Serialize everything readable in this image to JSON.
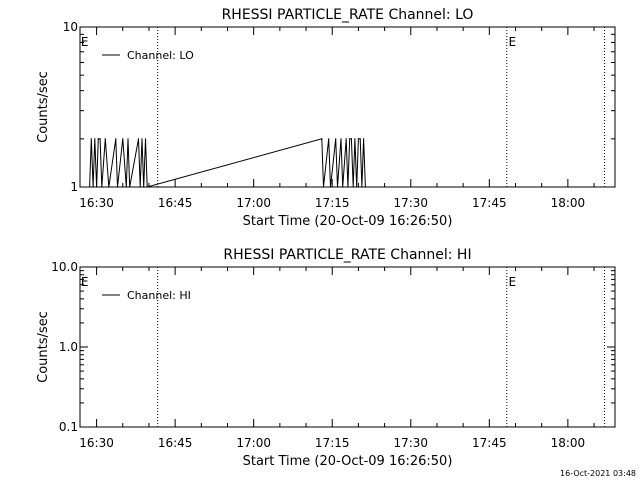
{
  "footer_timestamp": "16-Oct-2021 03:48",
  "chart_data": [
    {
      "type": "line",
      "title": "RHESSI PARTICLE_RATE Channel: LO",
      "xlabel": "Start Time (20-Oct-09 16:26:50)",
      "ylabel": "Counts/sec",
      "yscale": "log",
      "xlim": [
        "16:26:50",
        "18:09:00"
      ],
      "ylim": [
        1,
        10
      ],
      "ytick_labels": [
        "1",
        "10"
      ],
      "xtick_labels": [
        "16:30",
        "16:45",
        "17:00",
        "17:15",
        "17:30",
        "17:45",
        "18:00"
      ],
      "grid": false,
      "legend": "top-left",
      "series": [
        {
          "name": "Channel: LO",
          "points": [
            [
              "16:28:40",
              1
            ],
            [
              "16:29:00",
              2
            ],
            [
              "16:29:20",
              1
            ],
            [
              "16:29:40",
              2
            ],
            [
              "16:30:00",
              1
            ],
            [
              "16:30:20",
              2
            ],
            [
              "16:30:40",
              2
            ],
            [
              "16:31:00",
              1
            ],
            [
              "16:31:40",
              2
            ],
            [
              "16:32:20",
              1
            ],
            [
              "16:33:40",
              2
            ],
            [
              "16:34:00",
              1
            ],
            [
              "16:35:00",
              2
            ],
            [
              "16:35:40",
              1
            ],
            [
              "16:36:00",
              2
            ],
            [
              "16:36:20",
              1
            ],
            [
              "16:38:00",
              2
            ],
            [
              "16:38:20",
              1
            ],
            [
              "16:38:40",
              2
            ],
            [
              "16:39:00",
              1
            ],
            [
              "16:39:20",
              2
            ],
            [
              "16:39:40",
              1
            ],
            [
              "17:13:00",
              2
            ],
            [
              "17:13:20",
              1
            ],
            [
              "17:14:20",
              2
            ],
            [
              "17:14:40",
              1
            ],
            [
              "17:15:40",
              2
            ],
            [
              "17:16:00",
              1
            ],
            [
              "17:16:40",
              2
            ],
            [
              "17:17:00",
              1
            ],
            [
              "17:17:40",
              2
            ],
            [
              "17:18:00",
              1
            ],
            [
              "17:18:20",
              2
            ],
            [
              "17:18:40",
              2
            ],
            [
              "17:19:00",
              1
            ],
            [
              "17:19:20",
              2
            ],
            [
              "17:19:40",
              1
            ],
            [
              "17:20:00",
              2
            ],
            [
              "17:20:20",
              2
            ],
            [
              "17:20:40",
              1
            ],
            [
              "17:21:00",
              2
            ],
            [
              "17:21:20",
              1
            ]
          ]
        }
      ],
      "vlines": [
        "16:41:40",
        "17:48:20",
        "18:07:00"
      ],
      "annotations": [
        {
          "text": "E",
          "x": "16:27:00"
        },
        {
          "text": "E",
          "x": "17:48:40"
        }
      ]
    },
    {
      "type": "line",
      "title": "RHESSI PARTICLE_RATE Channel: HI",
      "xlabel": "Start Time (20-Oct-09 16:26:50)",
      "ylabel": "Counts/sec",
      "yscale": "log",
      "xlim": [
        "16:26:50",
        "18:09:00"
      ],
      "ylim": [
        0.1,
        10
      ],
      "ytick_labels": [
        "0.1",
        "1.0",
        "10.0"
      ],
      "xtick_labels": [
        "16:30",
        "16:45",
        "17:00",
        "17:15",
        "17:30",
        "17:45",
        "18:00"
      ],
      "grid": false,
      "legend": "top-left",
      "series": [
        {
          "name": "Channel: HI",
          "points": []
        }
      ],
      "vlines": [
        "16:41:40",
        "17:48:20",
        "18:07:00"
      ],
      "annotations": [
        {
          "text": "E",
          "x": "16:27:00"
        },
        {
          "text": "E",
          "x": "17:48:40"
        }
      ]
    }
  ]
}
